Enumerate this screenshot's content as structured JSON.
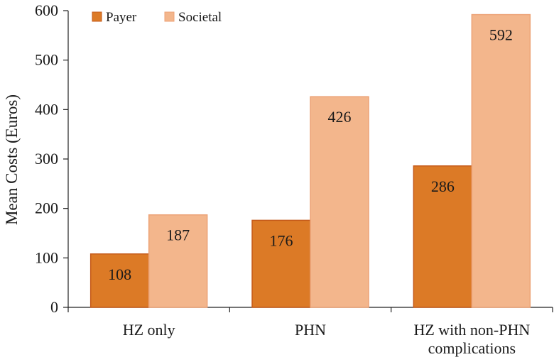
{
  "chart_data": {
    "type": "bar",
    "ylabel": "Mean Costs (Euros)",
    "ylim": [
      0,
      600
    ],
    "yticks": [
      0,
      100,
      200,
      300,
      400,
      500,
      600
    ],
    "categories": [
      [
        "HZ only"
      ],
      [
        "PHN"
      ],
      [
        "HZ with non-PHN",
        "complications"
      ]
    ],
    "series": [
      {
        "name": "Payer",
        "values": [
          108,
          176,
          286
        ],
        "color": "#dc7a26",
        "edge": "#c55a1a"
      },
      {
        "name": "Societal",
        "values": [
          187,
          426,
          592
        ],
        "color": "#f3b68c",
        "edge": "#eca276"
      }
    ],
    "legend": "top-left",
    "grid": false
  }
}
